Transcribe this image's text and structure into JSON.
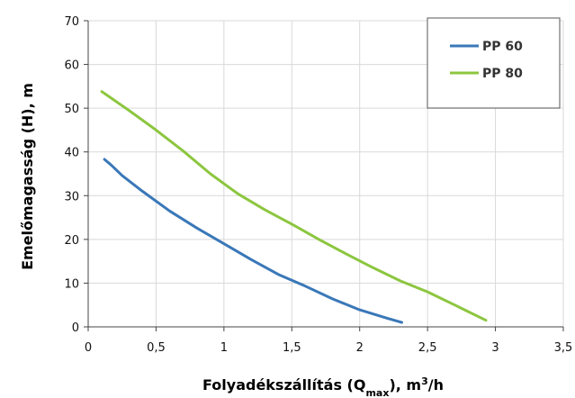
{
  "chart_data": {
    "type": "line",
    "title": "",
    "xlabel": {
      "prefix": "Folyadékszállítás (Q",
      "subscript": "max",
      "suffix": "), m",
      "superscript": "3",
      "tail": "/h"
    },
    "ylabel": "Emelőmagasság (H), m",
    "xlim": [
      0,
      3.5
    ],
    "ylim": [
      0,
      70
    ],
    "xticks": [
      0,
      0.5,
      1,
      1.5,
      2,
      2.5,
      3,
      3.5
    ],
    "xtick_labels": [
      "0",
      "0,5",
      "1",
      "1,5",
      "2",
      "2,5",
      "3",
      "3,5"
    ],
    "yticks": [
      0,
      10,
      20,
      30,
      40,
      50,
      60,
      70
    ],
    "ytick_labels": [
      "0",
      "10",
      "20",
      "30",
      "40",
      "50",
      "60",
      "70"
    ],
    "grid": true,
    "legend_position": "top-right",
    "series": [
      {
        "name": "PP 60",
        "color": "#3a78b8",
        "x": [
          0.12,
          0.17,
          0.25,
          0.4,
          0.6,
          0.8,
          1.0,
          1.2,
          1.4,
          1.6,
          1.8,
          2.0,
          2.2,
          2.31
        ],
        "y": [
          38.3,
          37.0,
          34.6,
          31.0,
          26.5,
          22.6,
          19.0,
          15.4,
          12.0,
          9.3,
          6.4,
          3.9,
          2.0,
          1.0
        ]
      },
      {
        "name": "PP 80",
        "color": "#8cc63f",
        "x": [
          0.1,
          0.3,
          0.5,
          0.7,
          0.9,
          1.1,
          1.3,
          1.5,
          1.7,
          1.9,
          2.1,
          2.3,
          2.5,
          2.7,
          2.93
        ],
        "y": [
          53.8,
          49.5,
          45.0,
          40.2,
          35.0,
          30.5,
          26.8,
          23.5,
          20.0,
          16.7,
          13.5,
          10.5,
          8.0,
          5.0,
          1.5
        ]
      }
    ]
  }
}
